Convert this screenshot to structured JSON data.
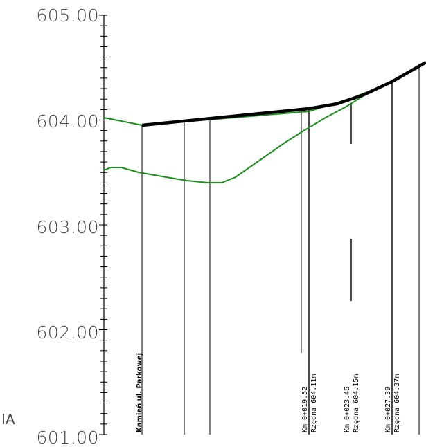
{
  "axis": {
    "y_labels": [
      "605.00",
      "604.00",
      "603.00",
      "602.00",
      "601.00"
    ],
    "y_range": [
      601.0,
      605.0
    ]
  },
  "side_label": "IA",
  "street_label": "Kamień ul. Parkowej",
  "stations": [
    {
      "km": "Km 0+019.52",
      "elev": "Rzędna 604.11m"
    },
    {
      "km": "Km 0+023.46",
      "elev": "Rzędna 604.15m"
    },
    {
      "km": "Km 0+027.39",
      "elev": "Rzędna 604.37m"
    }
  ],
  "colors": {
    "design_line": "#000000",
    "terrain_line": "#1a8f1a",
    "grid": "#000000",
    "label": "#444444"
  }
}
